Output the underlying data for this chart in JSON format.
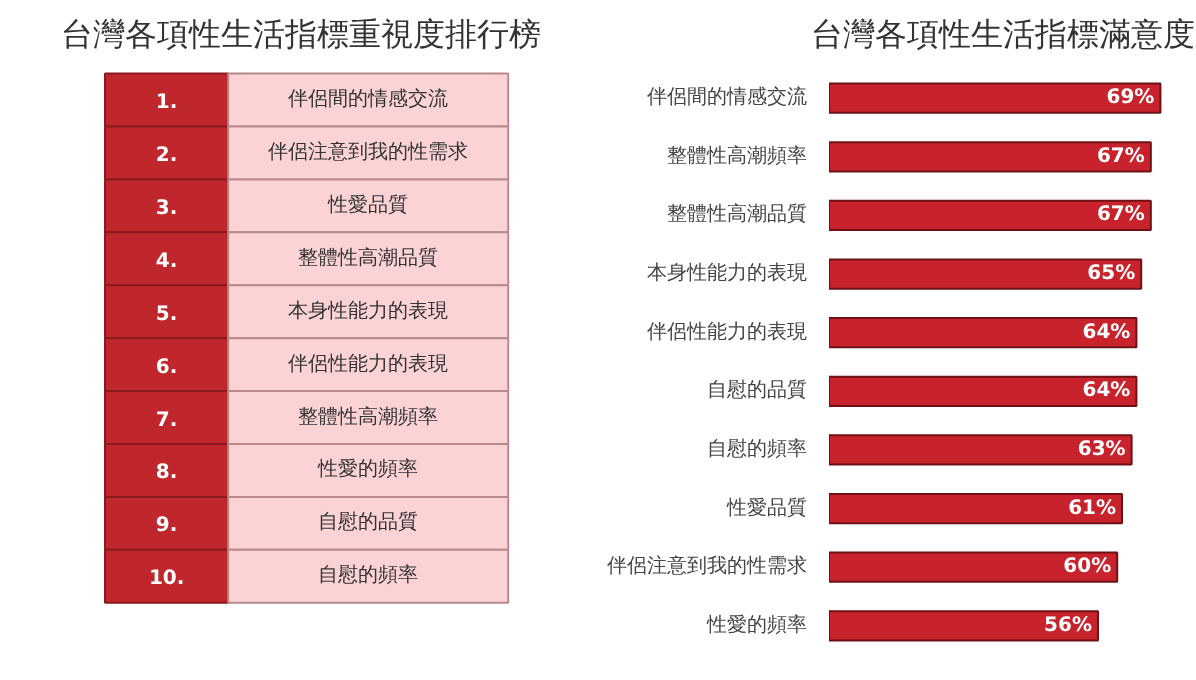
{
  "chart_data": [
    {
      "type": "heatmap",
      "title": "台灣各項性生活指標重視度排行榜",
      "categories": [
        null
      ],
      "y_categories": [
        "1.",
        "2.",
        "3.",
        "4.",
        "5.",
        "6.",
        "7.",
        "8.",
        "9.",
        "10."
      ],
      "cells": [
        [
          null
        ],
        [
          null
        ],
        [
          null
        ],
        [
          null
        ],
        [
          null
        ],
        [
          null
        ],
        [
          null
        ],
        [
          null
        ],
        [
          null
        ],
        [
          null
        ]
      ],
      "cell_labels": [
        [
          "伴侶間的情感交流"
        ],
        [
          "伴侶注意到我的性需求"
        ],
        [
          "性愛品質"
        ],
        [
          "整體性高潮品質"
        ],
        [
          "本身性能力的表現"
        ],
        [
          "伴侶性能力的表現"
        ],
        [
          "整體性高潮頻率"
        ],
        [
          "性愛的頻率"
        ],
        [
          "自慰的品質"
        ],
        [
          "自慰的頻率"
        ]
      ],
      "colors": [
        "#c0272d",
        "#fbd3d5"
      ]
    },
    {
      "type": "bar",
      "orientation": "horizontal",
      "title": "台灣各項性生活指標滿意度",
      "categories": [
        "伴侶間的情感交流",
        "整體性高潮頻率",
        "整體性高潮品質",
        "本身性能力的表現",
        "伴侶性能力的表現",
        "自慰的品質",
        "自慰的頻率",
        "性愛品質",
        "伴侶注意到我的性需求",
        "性愛的頻率"
      ],
      "values": [
        69,
        67,
        67,
        65,
        64,
        64,
        63,
        61,
        60,
        56
      ],
      "value_labels": [
        "69%",
        "67%",
        "67%",
        "65%",
        "64%",
        "64%",
        "63%",
        "61%",
        "60%",
        "56%"
      ],
      "color": "#c8232c"
    }
  ]
}
